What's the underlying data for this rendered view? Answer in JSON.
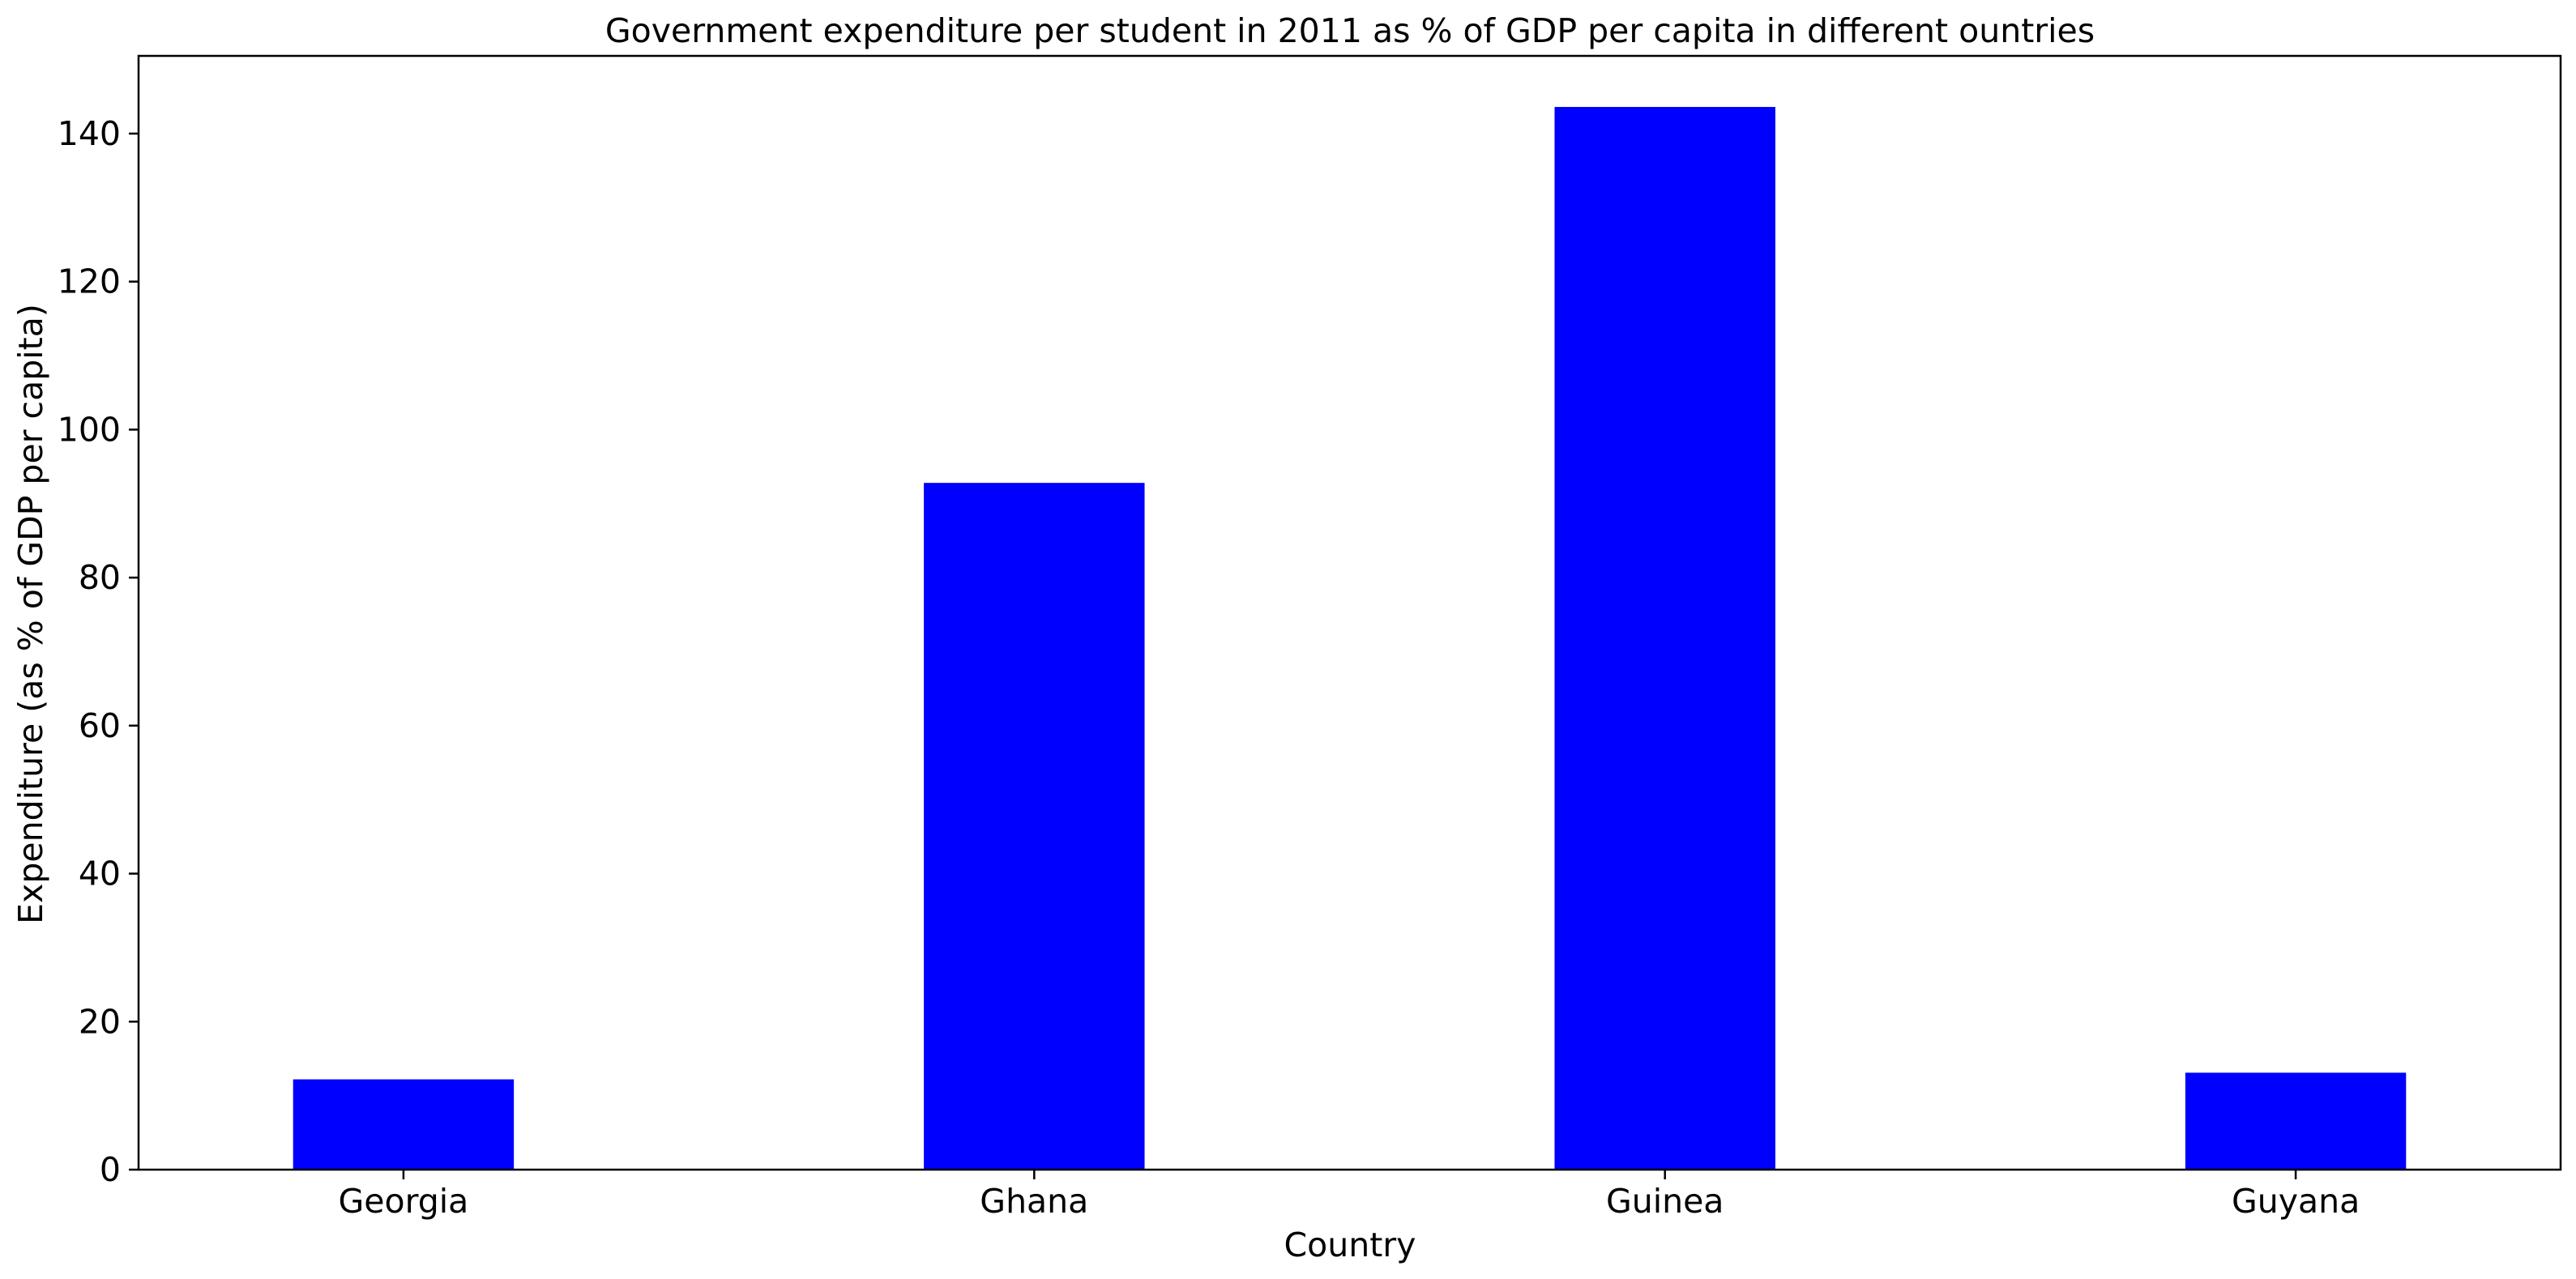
{
  "chart_data": {
    "type": "bar",
    "title": "Government expenditure per student in 2011 as % of GDP per capita in different ountries",
    "xlabel": "Country",
    "ylabel": "Expenditure (as % of GDP per capita)",
    "categories": [
      "Georgia",
      "Ghana",
      "Guinea",
      "Guyana"
    ],
    "series": [
      {
        "values": [
          12.2,
          92.8,
          143.6,
          13.1
        ]
      }
    ],
    "ylim": [
      0,
      150.5
    ],
    "yticks": [
      0,
      20,
      40,
      60,
      80,
      100,
      120,
      140
    ],
    "grid": false,
    "legend": "none",
    "colors": {
      "bar": "#0000ff",
      "axis": "#000000",
      "background": "#ffffff"
    }
  }
}
